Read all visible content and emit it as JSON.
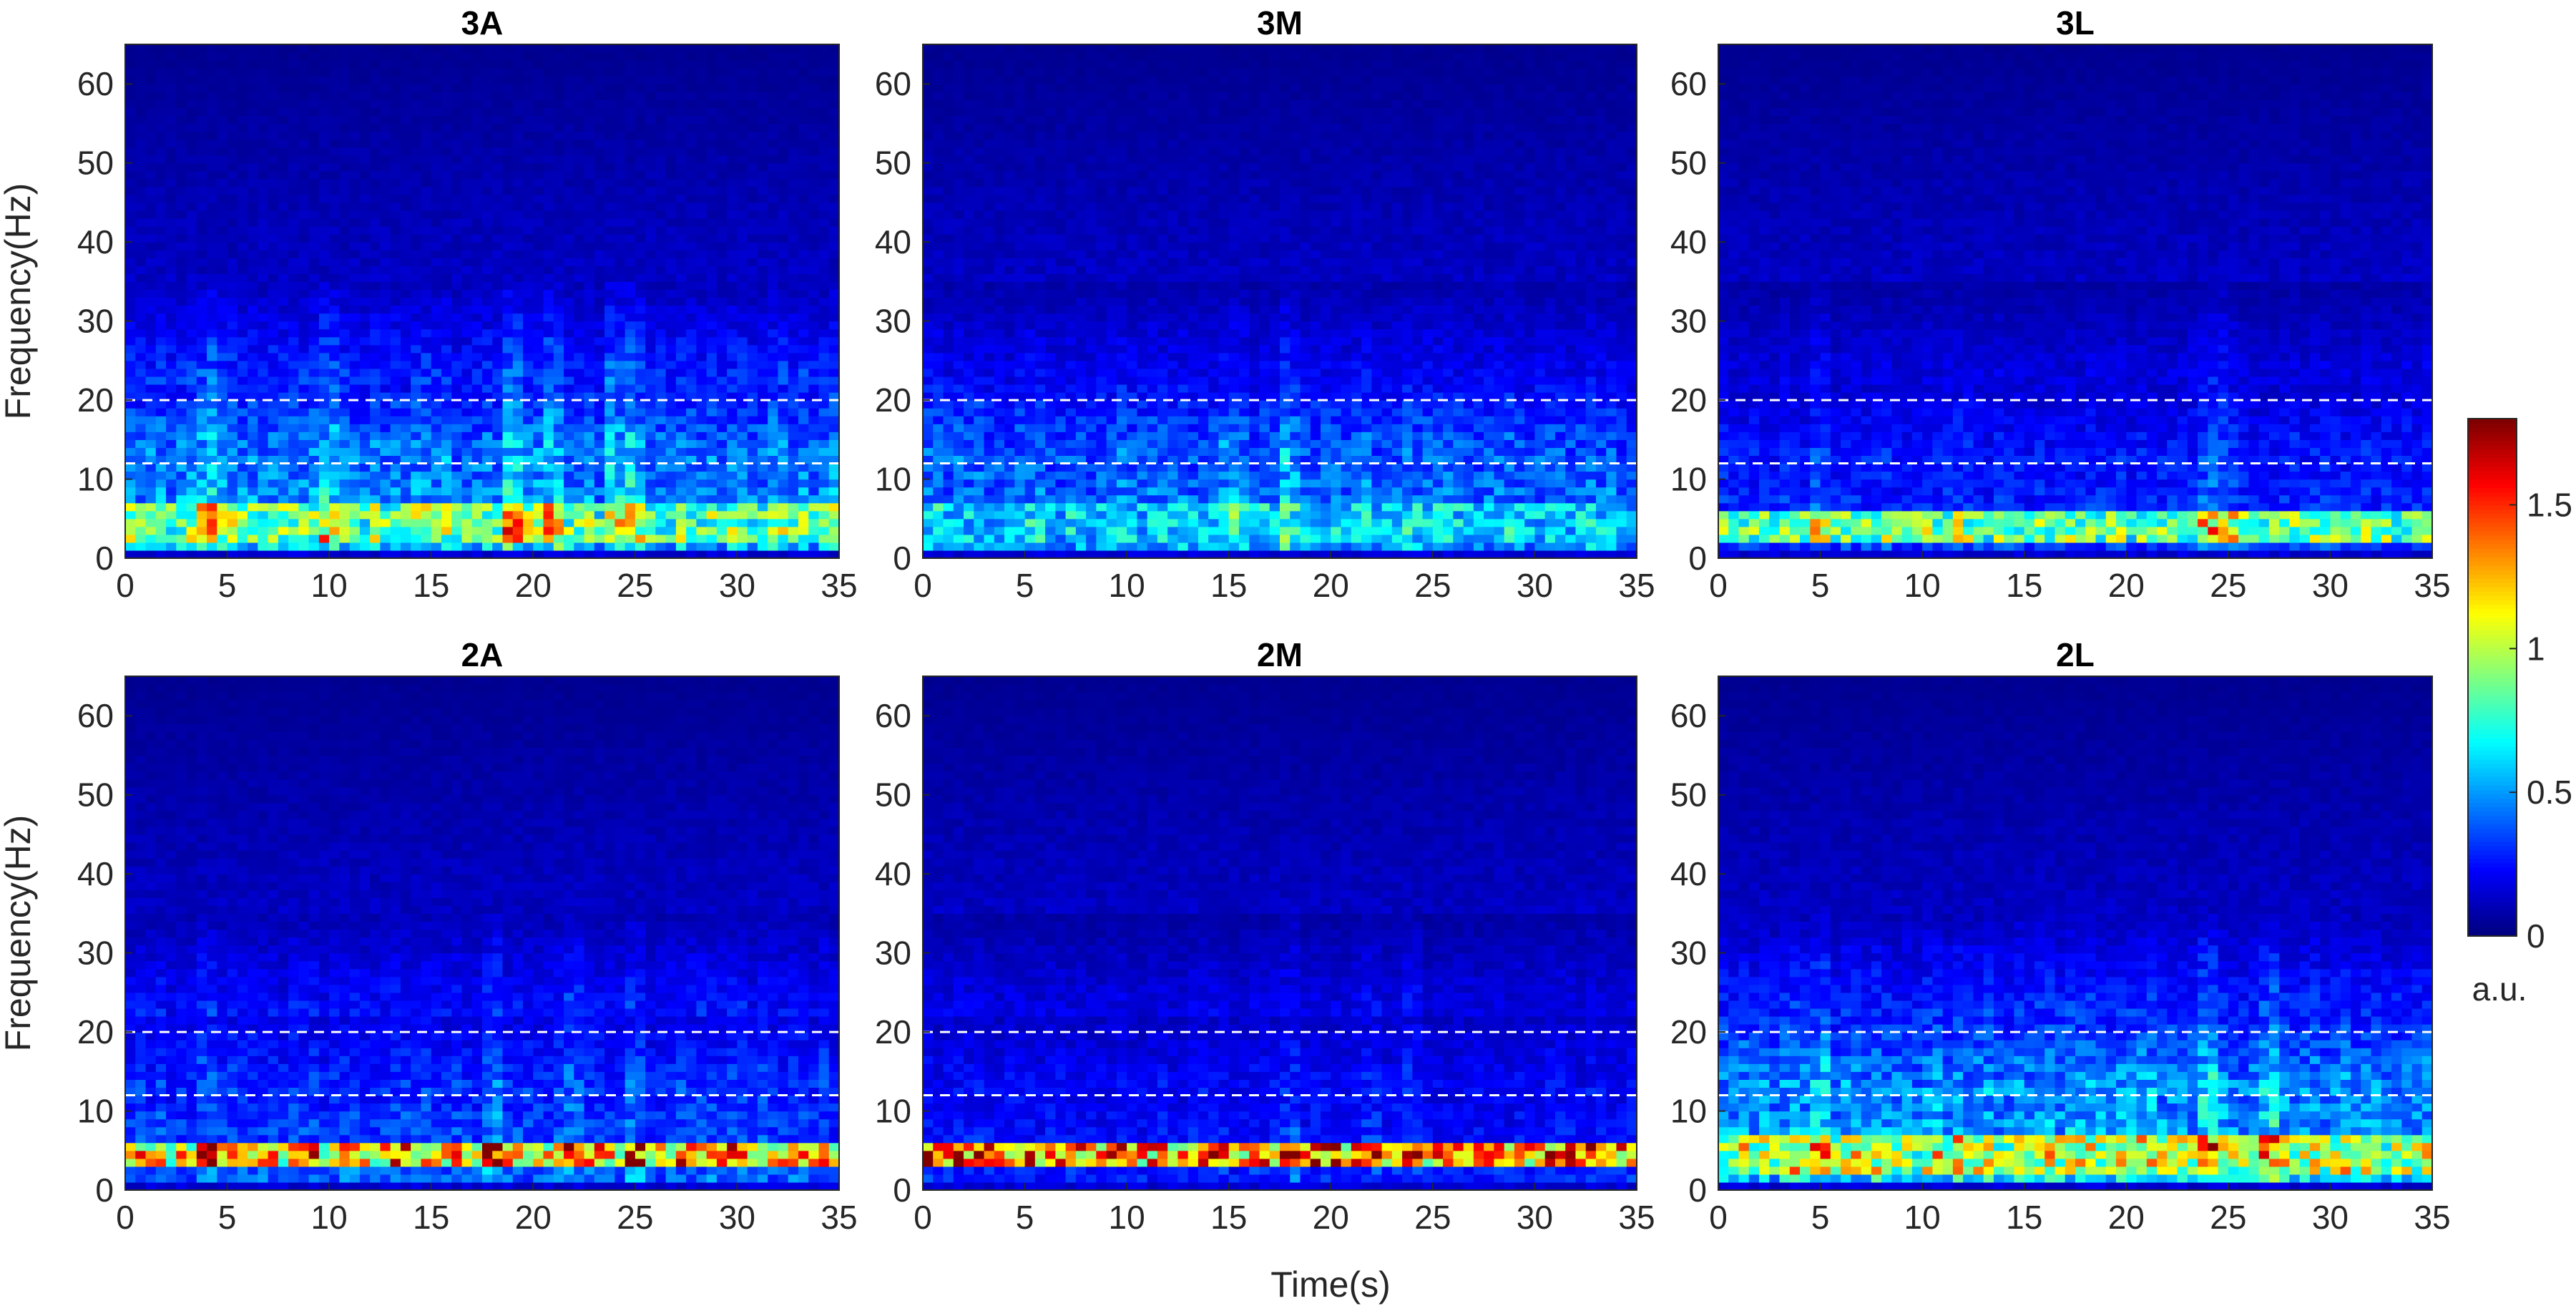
{
  "chart_data": {
    "type": "heatmap",
    "xlabel": "Time(s)",
    "ylabel": "Frequency(Hz)",
    "xlim": [
      0,
      35
    ],
    "ylim": [
      0,
      65
    ],
    "xticks": [
      0,
      5,
      10,
      15,
      20,
      25,
      30,
      35
    ],
    "yticks": [
      0,
      10,
      20,
      30,
      40,
      50,
      60
    ],
    "reference_lines_hz": [
      12,
      20
    ],
    "reference_line_style": "white dashed",
    "colormap": "jet",
    "colorbar": {
      "label": "a.u.",
      "range": [
        0,
        1.8
      ],
      "ticks": [
        0,
        0.5,
        1,
        1.5
      ],
      "tick_labels": [
        "0",
        "0.5",
        "1",
        "1.5"
      ],
      "placement": "right"
    },
    "grid": false,
    "panels": [
      {
        "title": "3A",
        "low_band_hz": [
          2,
          7
        ],
        "low_band_intensity": 0.85,
        "mid_band_intensity": 0.5,
        "high_band_intensity": 0.3,
        "peak_times_s": [
          4,
          10,
          19,
          21,
          24,
          25
        ]
      },
      {
        "title": "3M",
        "low_band_hz": [
          2,
          7
        ],
        "low_band_intensity": 0.6,
        "mid_band_intensity": 0.45,
        "high_band_intensity": 0.22,
        "peak_times_s": [
          15,
          18
        ]
      },
      {
        "title": "3L",
        "low_band_hz": [
          2,
          6
        ],
        "low_band_intensity": 0.85,
        "mid_band_intensity": 0.3,
        "high_band_intensity": 0.18,
        "peak_times_s": [
          5,
          24,
          25
        ]
      },
      {
        "title": "2A",
        "low_band_hz": [
          3,
          6
        ],
        "low_band_intensity": 1.2,
        "mid_band_intensity": 0.35,
        "high_band_intensity": 0.25,
        "peak_times_s": [
          4,
          18,
          22,
          25
        ]
      },
      {
        "title": "2M",
        "low_band_hz": [
          3,
          6
        ],
        "low_band_intensity": 1.3,
        "mid_band_intensity": 0.25,
        "high_band_intensity": 0.18,
        "peak_times_s": [
          18,
          22,
          24
        ]
      },
      {
        "title": "2L",
        "low_band_hz": [
          2,
          7
        ],
        "low_band_intensity": 1.0,
        "mid_band_intensity": 0.55,
        "high_band_intensity": 0.3,
        "peak_times_s": [
          5,
          24,
          27
        ]
      }
    ]
  }
}
